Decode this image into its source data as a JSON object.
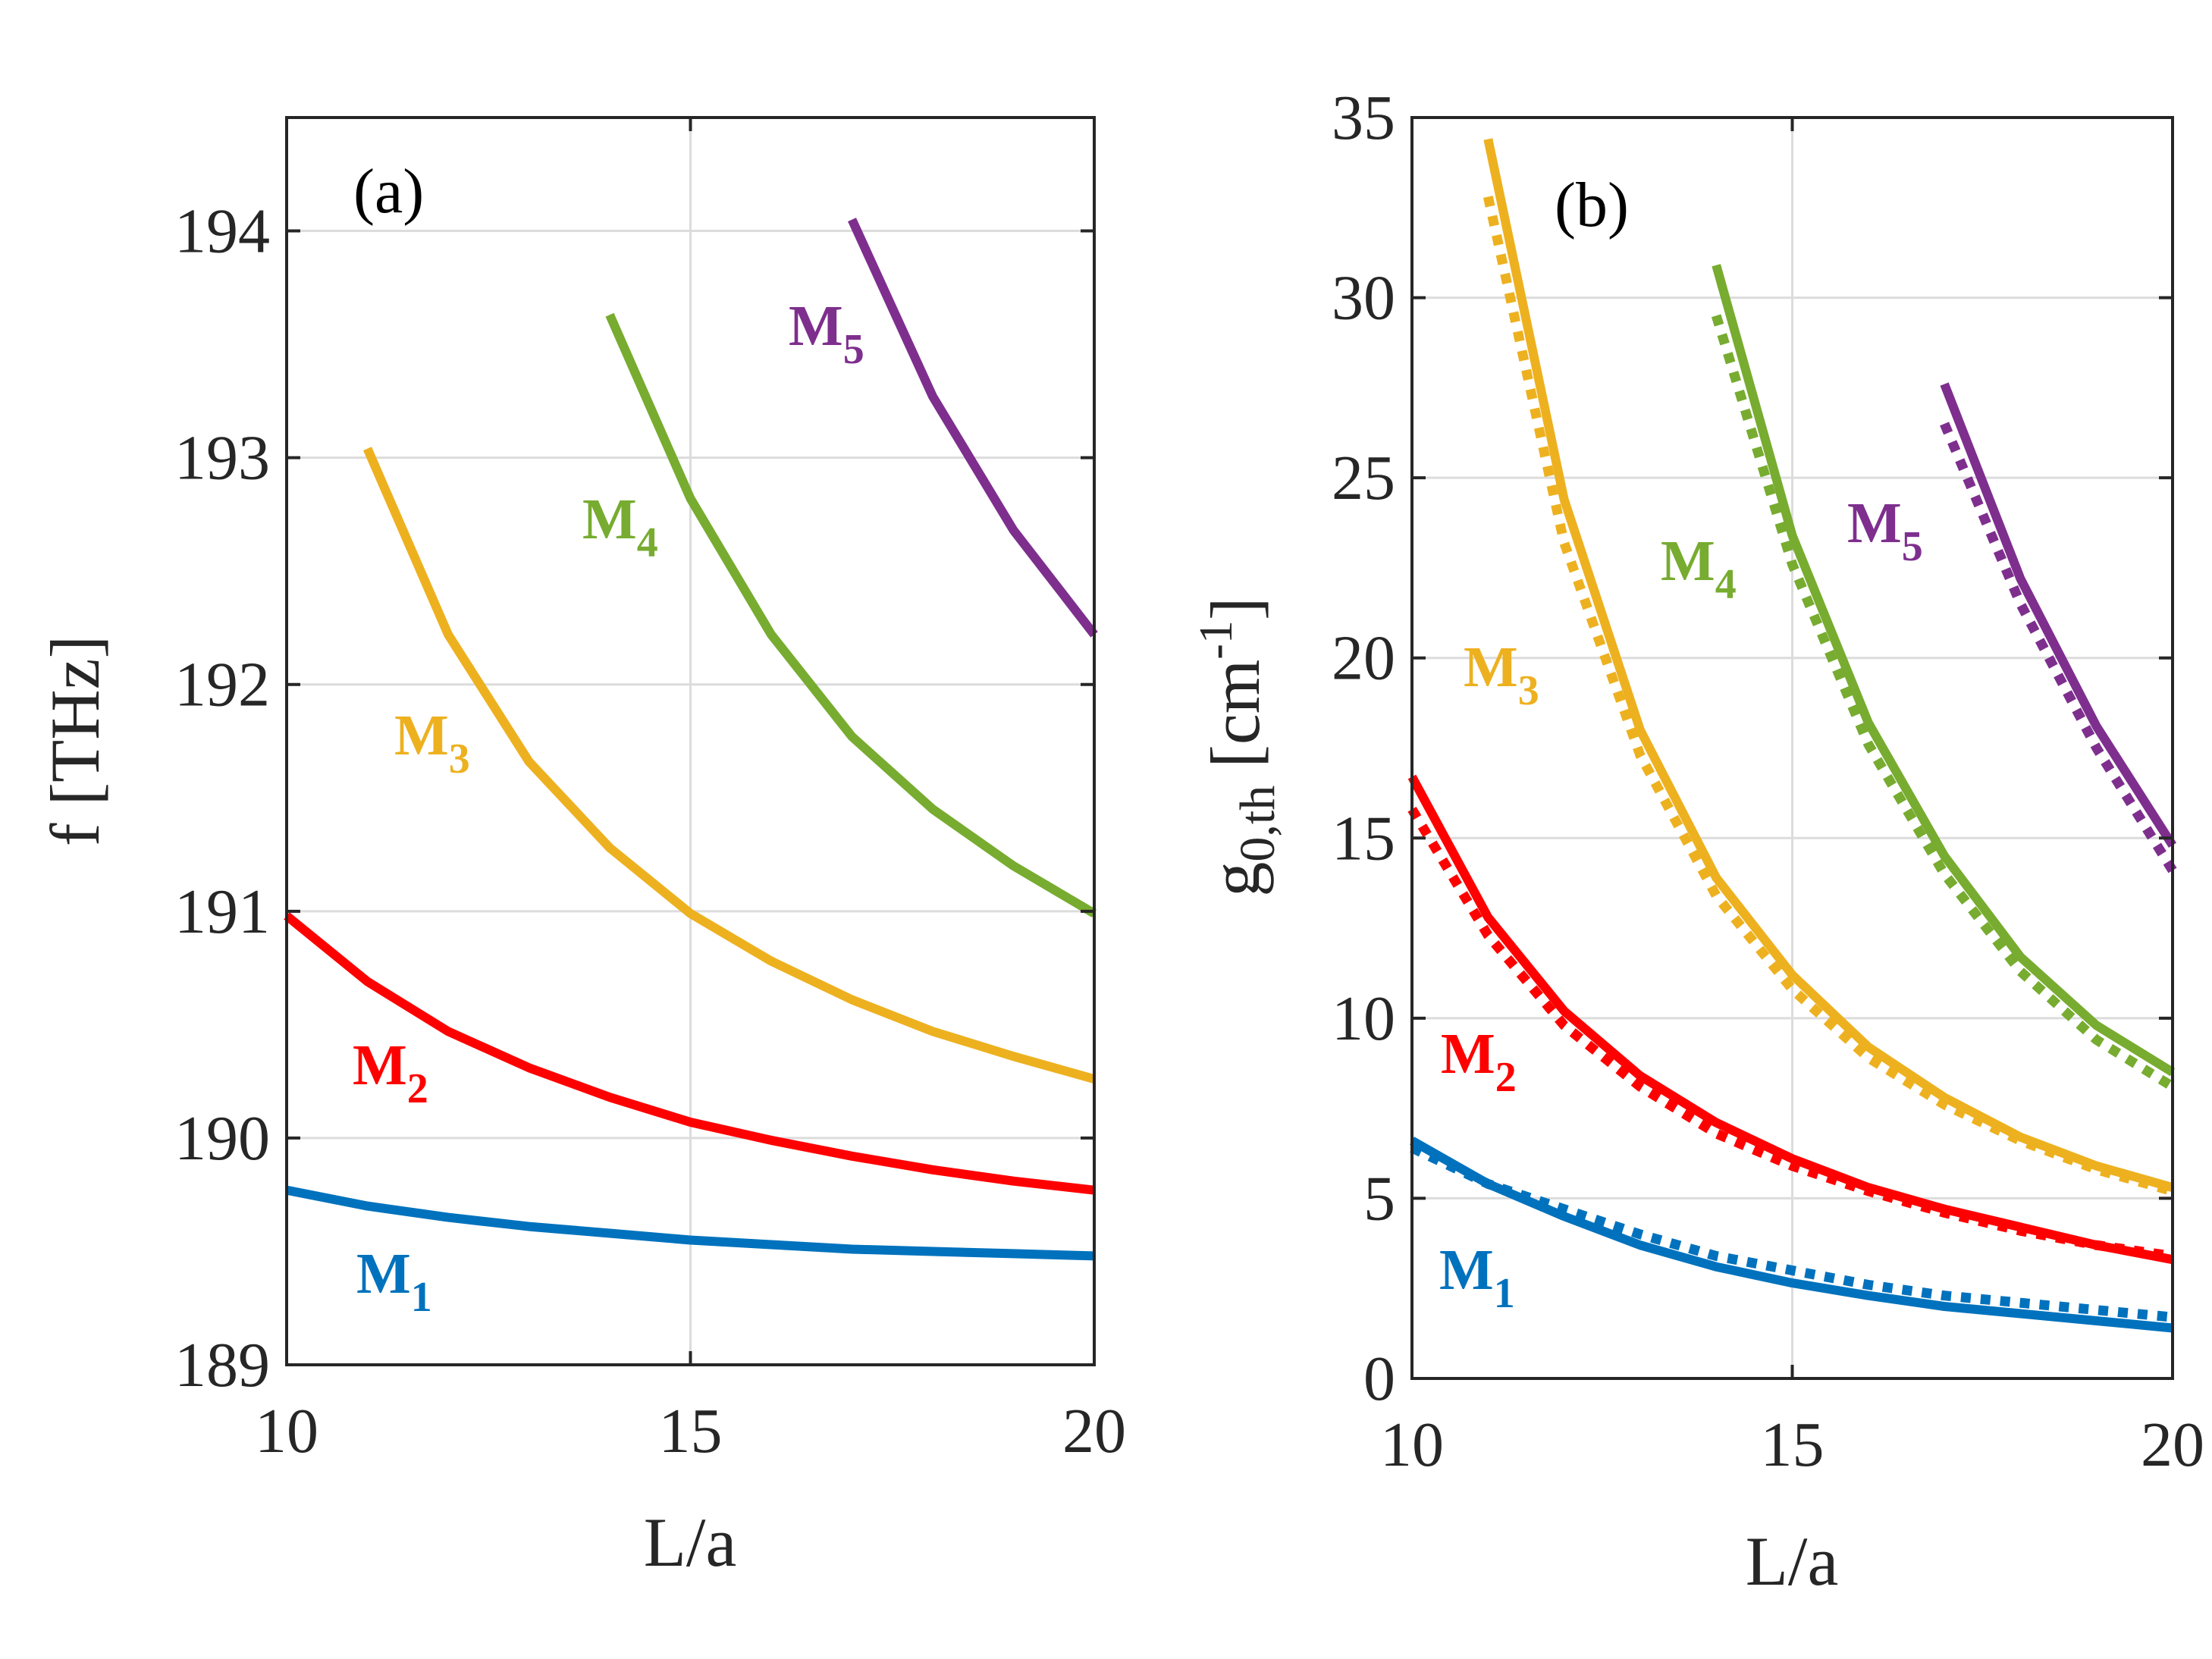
{
  "chart_data": [
    {
      "type": "line",
      "panel": "(a)",
      "xlabel": "L/a",
      "ylabel": "f [THz]",
      "xlim": [
        10,
        20
      ],
      "ylim": [
        189,
        194.5
      ],
      "xticks": [
        10,
        15,
        20
      ],
      "yticks": [
        189,
        190,
        191,
        192,
        193,
        194
      ],
      "grid": true,
      "series": [
        {
          "name": "M",
          "sub": "1",
          "color": "#0072BD",
          "x": [
            10,
            11,
            12,
            13,
            14,
            15,
            16,
            17,
            18,
            19,
            20
          ],
          "y": [
            189.77,
            189.7,
            189.65,
            189.61,
            189.58,
            189.55,
            189.53,
            189.51,
            189.5,
            189.49,
            189.48
          ]
        },
        {
          "name": "M",
          "sub": "2",
          "color": "#FF0000",
          "x": [
            10,
            11,
            12,
            13,
            14,
            15,
            16,
            17,
            18,
            19,
            20
          ],
          "y": [
            190.98,
            190.69,
            190.47,
            190.31,
            190.18,
            190.07,
            189.99,
            189.92,
            189.86,
            189.81,
            189.77
          ]
        },
        {
          "name": "M",
          "sub": "3",
          "color": "#EDB120",
          "x": [
            11,
            12,
            13,
            14,
            15,
            16,
            17,
            18,
            19,
            20
          ],
          "y": [
            193.04,
            192.22,
            191.66,
            191.28,
            190.99,
            190.78,
            190.61,
            190.47,
            190.36,
            190.26
          ]
        },
        {
          "name": "M",
          "sub": "4",
          "color": "#77AC30",
          "x": [
            14,
            15,
            16,
            17,
            18,
            19,
            20
          ],
          "y": [
            193.63,
            192.82,
            192.22,
            191.77,
            191.45,
            191.2,
            190.99
          ]
        },
        {
          "name": "M",
          "sub": "5",
          "color": "#7E2F8E",
          "x": [
            17,
            18,
            19,
            20
          ],
          "y": [
            194.05,
            193.27,
            192.68,
            192.22
          ]
        }
      ]
    },
    {
      "type": "line",
      "panel": "(b)",
      "xlabel": "L/a",
      "ylabel": "g0,th [cm-1]",
      "xlim": [
        10,
        20
      ],
      "ylim": [
        0,
        35
      ],
      "xticks": [
        10,
        15,
        20
      ],
      "yticks": [
        0,
        5,
        10,
        15,
        20,
        25,
        30,
        35
      ],
      "grid": true,
      "series": [
        {
          "name": "M",
          "sub": "1",
          "color": "#0072BD",
          "style": "solid",
          "x": [
            10,
            11,
            12,
            13,
            14,
            15,
            16,
            17,
            18,
            19,
            20
          ],
          "y": [
            6.6,
            5.4,
            4.5,
            3.7,
            3.1,
            2.65,
            2.3,
            2.0,
            1.8,
            1.6,
            1.4
          ]
        },
        {
          "name": "M1 (dotted)",
          "color": "#0072BD",
          "style": "dotted",
          "x": [
            10,
            11,
            12,
            13,
            14,
            15,
            16,
            17,
            18,
            19,
            20
          ],
          "y": [
            6.4,
            5.4,
            4.7,
            4.0,
            3.4,
            3.0,
            2.6,
            2.3,
            2.1,
            1.9,
            1.7
          ]
        },
        {
          "name": "M",
          "sub": "2",
          "color": "#FF0000",
          "style": "solid",
          "x": [
            10,
            11,
            12,
            13,
            14,
            15,
            16,
            17,
            18,
            19,
            20
          ],
          "y": [
            16.7,
            12.8,
            10.2,
            8.4,
            7.1,
            6.1,
            5.3,
            4.7,
            4.2,
            3.7,
            3.3
          ]
        },
        {
          "name": "M2 (dotted)",
          "color": "#FF0000",
          "style": "dotted",
          "x": [
            10,
            11,
            12,
            13,
            14,
            15,
            16,
            17,
            18,
            19,
            20
          ],
          "y": [
            15.8,
            12.3,
            9.8,
            8.1,
            6.8,
            5.9,
            5.2,
            4.6,
            4.1,
            3.7,
            3.4
          ]
        },
        {
          "name": "M",
          "sub": "3",
          "color": "#EDB120",
          "style": "solid",
          "x": [
            11,
            12,
            13,
            14,
            15,
            16,
            17,
            18,
            19,
            20
          ],
          "y": [
            34.4,
            24.4,
            18.0,
            13.9,
            11.2,
            9.2,
            7.8,
            6.7,
            5.9,
            5.3
          ]
        },
        {
          "name": "M3 (dotted)",
          "color": "#EDB120",
          "style": "dotted",
          "x": [
            11,
            12,
            13,
            14,
            15,
            16,
            17,
            18,
            19,
            20
          ],
          "y": [
            32.8,
            23.2,
            17.3,
            13.4,
            10.8,
            8.9,
            7.6,
            6.6,
            5.8,
            5.2
          ]
        },
        {
          "name": "M",
          "sub": "4",
          "color": "#77AC30",
          "style": "solid",
          "x": [
            14,
            15,
            16,
            17,
            18,
            19,
            20
          ],
          "y": [
            30.9,
            23.4,
            18.2,
            14.5,
            11.7,
            9.8,
            8.5
          ]
        },
        {
          "name": "M4 (dotted)",
          "color": "#77AC30",
          "style": "dotted",
          "x": [
            14,
            15,
            16,
            17,
            18,
            19,
            20
          ],
          "y": [
            29.5,
            22.6,
            17.6,
            14.0,
            11.3,
            9.4,
            8.1
          ]
        },
        {
          "name": "M",
          "sub": "5",
          "color": "#7E2F8E",
          "style": "solid",
          "x": [
            17,
            18,
            19,
            20
          ],
          "y": [
            27.6,
            22.2,
            18.1,
            14.8
          ]
        },
        {
          "name": "M5 (dotted)",
          "color": "#7E2F8E",
          "style": "dotted",
          "x": [
            17,
            18,
            19,
            20
          ],
          "y": [
            26.5,
            21.5,
            17.5,
            14.1
          ]
        }
      ]
    }
  ]
}
